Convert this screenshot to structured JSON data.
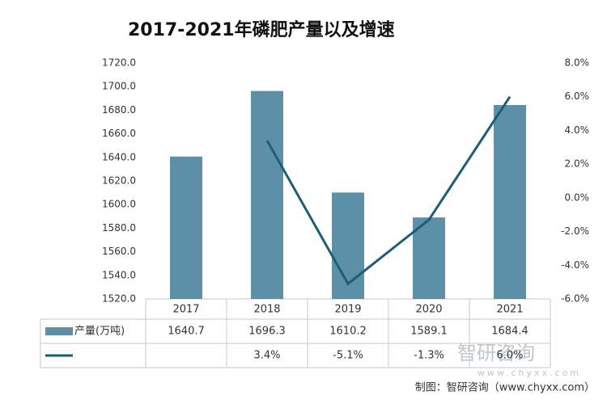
{
  "chart_data": {
    "type": "bar_line",
    "title": "2017-2021年磷肥产量以及增速",
    "categories": [
      "2017",
      "2018",
      "2019",
      "2020",
      "2021"
    ],
    "series": [
      {
        "name": "产量(万吨)",
        "type": "bar",
        "color": "#5d8fa8",
        "values": [
          1640.7,
          1696.3,
          1610.2,
          1589.1,
          1684.4
        ]
      },
      {
        "type": "line",
        "axis": "y2",
        "color": "#1d5d78",
        "values": [
          null,
          3.4,
          -5.1,
          -1.3,
          6.0
        ],
        "value_labels": [
          null,
          "3.4%",
          "-5.1%",
          "-1.3%",
          "6.0%"
        ]
      }
    ],
    "ylim": [
      1520,
      1720
    ],
    "yticks": [
      {
        "value": 1520,
        "label": "1520.0"
      },
      {
        "value": 1540,
        "label": "1540.0"
      },
      {
        "value": 1560,
        "label": "1560.0"
      },
      {
        "value": 1580,
        "label": "1580.0"
      },
      {
        "value": 1600,
        "label": "1600.0"
      },
      {
        "value": 1620,
        "label": "1620.0"
      },
      {
        "value": 1640,
        "label": "1640.0"
      },
      {
        "value": 1660,
        "label": "1660.0"
      },
      {
        "value": 1680,
        "label": "1680.0"
      },
      {
        "value": 1700,
        "label": "1700.0"
      },
      {
        "value": 1720,
        "label": "1720.0"
      }
    ],
    "y2lim": [
      -6,
      8
    ],
    "y2ticks": [
      {
        "value": -6,
        "label": "-6.0%"
      },
      {
        "value": -4,
        "label": "-4.0%"
      },
      {
        "value": -2,
        "label": "-2.0%"
      },
      {
        "value": 0,
        "label": "0.0%"
      },
      {
        "value": 2,
        "label": "2.0%"
      },
      {
        "value": 4,
        "label": "4.0%"
      },
      {
        "value": 6,
        "label": "6.0%"
      },
      {
        "value": 8,
        "label": "8.0%"
      }
    ],
    "grid": false,
    "source": "制图：智研咨询（www.chyxx.com）",
    "watermark": "智研咨询",
    "watermark_url": "www.chyxx.com"
  }
}
